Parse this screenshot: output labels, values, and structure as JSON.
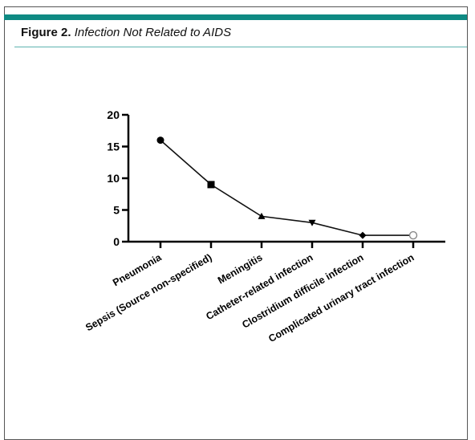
{
  "figure": {
    "label": "Figure 2.",
    "title": "Infection Not Related to AIDS",
    "accent_color": "#0e8a83",
    "rule_color": "#5fb3b0"
  },
  "chart_data": {
    "type": "line",
    "categories": [
      "Pneumonia",
      "Sepsis (Source non-specified)",
      "Meningitis",
      "Catheter-related infection",
      "Clostridium difficile infection",
      "Complicated urinary tract infection"
    ],
    "values": [
      16,
      9,
      4,
      3,
      1,
      1
    ],
    "markers": [
      "circle",
      "square",
      "triangle-up",
      "triangle-down",
      "diamond",
      "open-circle"
    ],
    "ylim": [
      0,
      20
    ],
    "yticks": [
      "0",
      "5",
      "10",
      "15",
      "20"
    ],
    "grid": false,
    "line_color": "#111111"
  }
}
